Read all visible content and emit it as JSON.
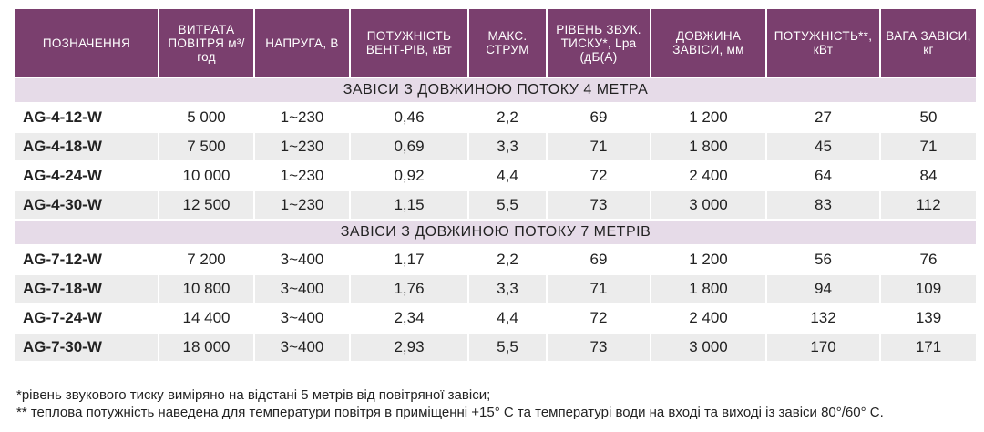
{
  "headers": [
    "ПОЗНАЧЕННЯ",
    "ВИТРАТА ПОВІТРЯ м³/год",
    "НАПРУГА, В",
    "ПОТУЖНІСТЬ ВЕНТ-РІВ, кВт",
    "МАКС. СТРУМ",
    "РІВЕНЬ ЗВУК. ТИСКУ*, Lpa (дБ(А)",
    "ДОВЖИНА ЗАВІСИ, мм",
    "ПОТУЖНІСТЬ**, кВт",
    "ВАГА ЗАВІСИ, кг"
  ],
  "sections": [
    {
      "title": "ЗАВІСИ З ДОВЖИНОЮ ПОТОКУ 4 МЕТРА",
      "rows": [
        [
          "AG-4-12-W",
          "5 000",
          "1~230",
          "0,46",
          "2,2",
          "69",
          "1 200",
          "27",
          "50"
        ],
        [
          "AG-4-18-W",
          "7 500",
          "1~230",
          "0,69",
          "3,3",
          "71",
          "1 800",
          "45",
          "71"
        ],
        [
          "AG-4-24-W",
          "10 000",
          "1~230",
          "0,92",
          "4,4",
          "72",
          "2 400",
          "64",
          "84"
        ],
        [
          "AG-4-30-W",
          "12 500",
          "1~230",
          "1,15",
          "5,5",
          "73",
          "3 000",
          "83",
          "112"
        ]
      ]
    },
    {
      "title": "ЗАВІСИ З ДОВЖИНОЮ ПОТОКУ 7 МЕТРІВ",
      "rows": [
        [
          "AG-7-12-W",
          "7 200",
          "3~400",
          "1,17",
          "2,2",
          "69",
          "1 200",
          "56",
          "76"
        ],
        [
          "AG-7-18-W",
          "10 800",
          "3~400",
          "1,76",
          "3,3",
          "71",
          "1 800",
          "94",
          "109"
        ],
        [
          "AG-7-24-W",
          "14 400",
          "3~400",
          "2,34",
          "4,4",
          "72",
          "2 400",
          "132",
          "139"
        ],
        [
          "AG-7-30-W",
          "18 000",
          "3~400",
          "2,93",
          "5,5",
          "73",
          "3 000",
          "170",
          "171"
        ]
      ]
    }
  ],
  "notes": [
    "*рівень звукового тиску виміряно на відстані 5 метрів від повітряної завіси;",
    "** теплова потужність наведена для температури повітря в приміщенні +15° С та температурі води на вході та виході із завіси 80°/60° С."
  ]
}
